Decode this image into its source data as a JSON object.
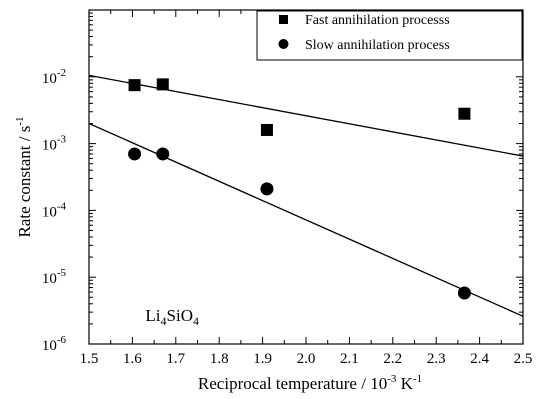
{
  "chart_data": {
    "type": "scatter",
    "xlabel": "Reciprocal temperature / 10",
    "xlabel_sup1": "-3",
    "xlabel_mid": " K",
    "xlabel_sup2": "-1",
    "ylabel": "Rate constant / s",
    "ylabel_sup": "-1",
    "y_scale": "log",
    "xlim": [
      1.5,
      2.5
    ],
    "ylim": [
      1e-06,
      0.1
    ],
    "x_ticks": [
      1.5,
      1.6,
      1.7,
      1.8,
      1.9,
      2.0,
      2.1,
      2.2,
      2.3,
      2.4,
      2.5
    ],
    "x_tick_labels": [
      "1.5",
      "1.6",
      "1.7",
      "1.8",
      "1.9",
      "2.0",
      "2.1",
      "2.2",
      "2.3",
      "2.4",
      "2.5"
    ],
    "y_ticks": [
      {
        "value": 1e-06,
        "base": "10",
        "exp": "-6"
      },
      {
        "value": 1e-05,
        "base": "10",
        "exp": "-5"
      },
      {
        "value": 0.0001,
        "base": "10",
        "exp": "-4"
      },
      {
        "value": 0.001,
        "base": "10",
        "exp": "-3"
      },
      {
        "value": 0.01,
        "base": "10",
        "exp": "-2"
      }
    ],
    "annotation": {
      "main": "Li",
      "sub1": "4",
      "mid": "SiO",
      "sub2": "4",
      "x": 1.63,
      "y": 2.2e-06
    },
    "legend_position": "top-right",
    "series": [
      {
        "name": "Fast annihilation processs",
        "marker": "square",
        "x": [
          1.605,
          1.67,
          1.91,
          2.365
        ],
        "y": [
          0.0075,
          0.0077,
          0.0016,
          0.0028
        ],
        "fit_line": {
          "x": [
            1.5,
            2.5
          ],
          "y": [
            0.0105,
            0.00065
          ]
        }
      },
      {
        "name": "Slow annihilation process",
        "marker": "circle",
        "x": [
          1.605,
          1.67,
          1.91,
          2.365
        ],
        "y": [
          0.0007,
          0.0007,
          0.00021,
          5.8e-06
        ],
        "fit_line": {
          "x": [
            1.5,
            2.5
          ],
          "y": [
            0.002,
            2.6e-06
          ]
        }
      }
    ],
    "grid": false
  }
}
